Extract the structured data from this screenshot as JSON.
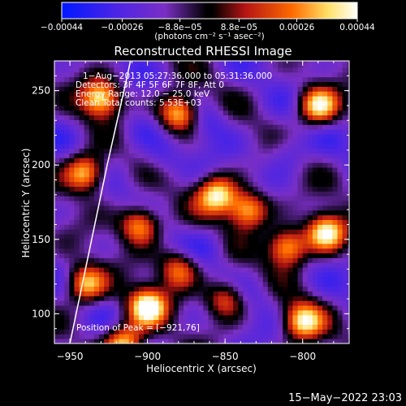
{
  "chart_data": {
    "type": "heatmap",
    "title": "Reconstructed RHESSI Image",
    "xlabel": "Heliocentric X (arcsec)",
    "ylabel": "Heliocentric Y (arcsec)",
    "xlim": [
      -960,
      -770
    ],
    "ylim": [
      80,
      270
    ],
    "x_ticks": [
      -950,
      -900,
      -850,
      -800
    ],
    "x_tick_labels": [
      "−950",
      "−900",
      "−850",
      "−800"
    ],
    "y_ticks": [
      100,
      150,
      200,
      250
    ],
    "y_tick_labels": [
      "100",
      "150",
      "200",
      "250"
    ],
    "colorbar": {
      "range": [
        -0.00044,
        0.00044
      ],
      "ticks": [
        -0.00044,
        -0.00026,
        -8.8e-05,
        8.8e-05,
        0.00026,
        0.00044
      ],
      "tick_labels": [
        "−0.00044",
        "−0.00026",
        "−8.8e−05",
        "8.8e−05",
        "0.00026",
        "0.00044"
      ],
      "unit_label": "(photons cm⁻² s⁻¹ asec⁻²)",
      "colors": [
        "#0018ff",
        "#6e2fd2",
        "#000000",
        "#b41414",
        "#ff6a00",
        "#ffe066",
        "#ffffff"
      ]
    },
    "annotations": [
      "1−Aug−2013 05:27:36.000 to 05:31:36.000",
      "Detectors: 3F 4F 5F 6F 7F 8F, Att 0",
      "Energy Range: 12.0 − 25.0 keV",
      "Clean     Total counts: 5.53E+03"
    ],
    "peak_label": "Position of Peak = [−921,76]",
    "peak": [
      -921,
      76
    ],
    "limb_curve": [
      [
        -950,
        80
      ],
      [
        -944,
        110
      ],
      [
        -936,
        150
      ],
      [
        -926,
        200
      ],
      [
        -913,
        260
      ],
      [
        -911,
        270
      ]
    ],
    "hot_spots": [
      {
        "x": -930,
        "y": 245,
        "v": 0.9
      },
      {
        "x": -880,
        "y": 235,
        "v": 0.95
      },
      {
        "x": -790,
        "y": 240,
        "v": 0.95
      },
      {
        "x": -940,
        "y": 195,
        "v": 0.9
      },
      {
        "x": -905,
        "y": 160,
        "v": 0.8
      },
      {
        "x": -855,
        "y": 180,
        "v": 0.9
      },
      {
        "x": -835,
        "y": 170,
        "v": 0.85
      },
      {
        "x": -785,
        "y": 155,
        "v": 1.0
      },
      {
        "x": -810,
        "y": 145,
        "v": 0.9
      },
      {
        "x": -880,
        "y": 130,
        "v": 0.6
      },
      {
        "x": -900,
        "y": 105,
        "v": 1.0
      },
      {
        "x": -850,
        "y": 110,
        "v": 0.55
      },
      {
        "x": -800,
        "y": 95,
        "v": 0.85
      },
      {
        "x": -940,
        "y": 120,
        "v": 0.8
      },
      {
        "x": -915,
        "y": 80,
        "v": 0.9
      }
    ],
    "cold_spots": [
      {
        "x": -860,
        "y": 230,
        "v": -0.5
      },
      {
        "x": -890,
        "y": 205,
        "v": -0.5
      },
      {
        "x": -810,
        "y": 210,
        "v": -0.55
      },
      {
        "x": -860,
        "y": 145,
        "v": -0.45
      },
      {
        "x": -830,
        "y": 115,
        "v": -0.4
      },
      {
        "x": -905,
        "y": 225,
        "v": -0.45
      }
    ]
  },
  "footer_date": "15−May−2022 23:03"
}
